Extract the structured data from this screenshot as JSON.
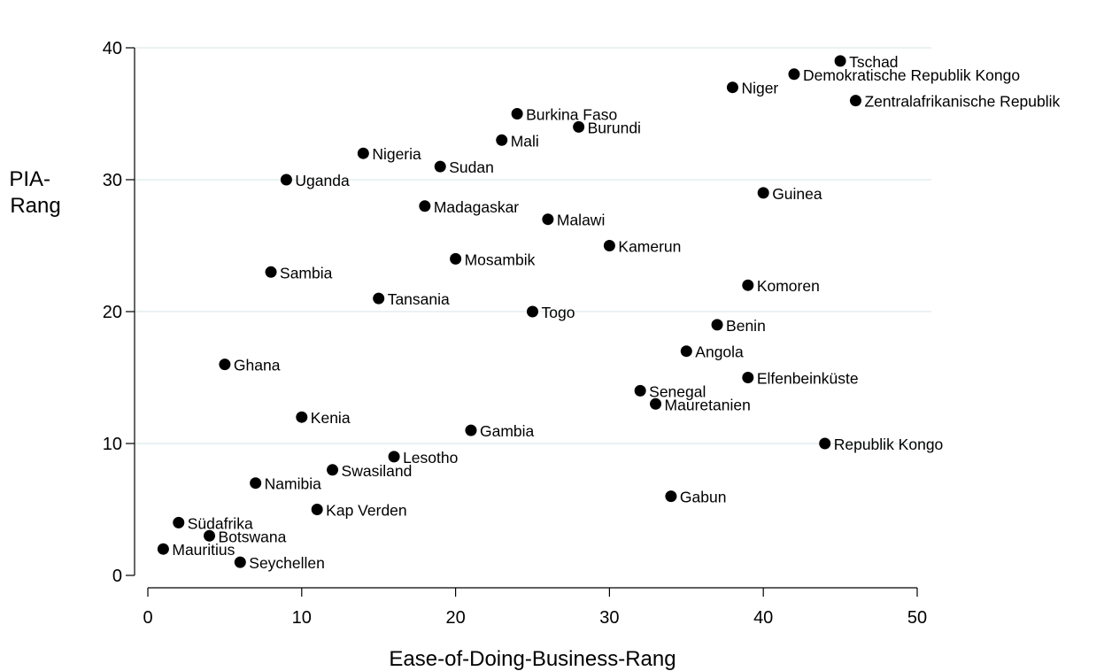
{
  "chart_data": {
    "type": "scatter",
    "xlabel": "Ease-of-Doing-Business-Rang",
    "ylabel_lines": [
      "PIA-",
      "Rang"
    ],
    "xlim": [
      0,
      50
    ],
    "ylim": [
      0,
      40
    ],
    "xticks": [
      0,
      10,
      20,
      30,
      40,
      50
    ],
    "yticks": [
      0,
      10,
      20,
      30,
      40
    ],
    "grid": "horizontal",
    "legend": "none",
    "marker_color": "#000000",
    "grid_color": "#eaf2f3",
    "points": [
      {
        "label": "Tschad",
        "x": 45,
        "y": 39
      },
      {
        "label": "Demokratische Republik Kongo",
        "x": 42,
        "y": 38
      },
      {
        "label": "Niger",
        "x": 38,
        "y": 37
      },
      {
        "label": "Zentralafrikanische Republik",
        "x": 46,
        "y": 36
      },
      {
        "label": "Burkina Faso",
        "x": 24,
        "y": 35
      },
      {
        "label": "Burundi",
        "x": 28,
        "y": 34
      },
      {
        "label": "Mali",
        "x": 23,
        "y": 33
      },
      {
        "label": "Nigeria",
        "x": 14,
        "y": 32
      },
      {
        "label": "Sudan",
        "x": 19,
        "y": 31
      },
      {
        "label": "Uganda",
        "x": 9,
        "y": 30
      },
      {
        "label": "Guinea",
        "x": 40,
        "y": 29
      },
      {
        "label": "Madagaskar",
        "x": 18,
        "y": 28
      },
      {
        "label": "Malawi",
        "x": 26,
        "y": 27
      },
      {
        "label": "Kamerun",
        "x": 30,
        "y": 25
      },
      {
        "label": "Mosambik",
        "x": 20,
        "y": 24
      },
      {
        "label": "Sambia",
        "x": 8,
        "y": 23
      },
      {
        "label": "Komoren",
        "x": 39,
        "y": 22
      },
      {
        "label": "Tansania",
        "x": 15,
        "y": 21
      },
      {
        "label": "Togo",
        "x": 25,
        "y": 20
      },
      {
        "label": "Benin",
        "x": 37,
        "y": 19
      },
      {
        "label": "Angola",
        "x": 35,
        "y": 17
      },
      {
        "label": "Ghana",
        "x": 5,
        "y": 16
      },
      {
        "label": "Elfenbeinküste",
        "x": 39,
        "y": 15
      },
      {
        "label": "Senegal",
        "x": 32,
        "y": 14
      },
      {
        "label": "Mauretanien",
        "x": 33,
        "y": 13
      },
      {
        "label": "Kenia",
        "x": 10,
        "y": 12
      },
      {
        "label": "Gambia",
        "x": 21,
        "y": 11
      },
      {
        "label": "Republik Kongo",
        "x": 44,
        "y": 10
      },
      {
        "label": "Lesotho",
        "x": 16,
        "y": 9
      },
      {
        "label": "Swasiland",
        "x": 12,
        "y": 8
      },
      {
        "label": "Namibia",
        "x": 7,
        "y": 7
      },
      {
        "label": "Gabun",
        "x": 34,
        "y": 6
      },
      {
        "label": "Kap Verden",
        "x": 11,
        "y": 5
      },
      {
        "label": "Südafrika",
        "x": 2,
        "y": 4
      },
      {
        "label": "Botswana",
        "x": 4,
        "y": 3
      },
      {
        "label": "Mauritius",
        "x": 1,
        "y": 2
      },
      {
        "label": "Seychellen",
        "x": 6,
        "y": 1
      }
    ]
  }
}
